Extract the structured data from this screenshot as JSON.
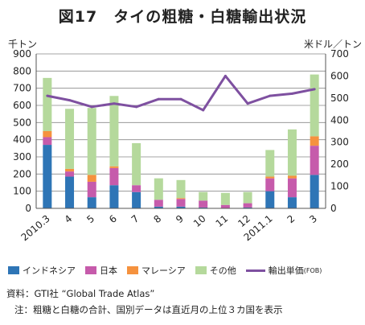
{
  "title": "図17　タイの粗糖・白糖輸出状況",
  "colors": {
    "indonesia": "#2e75b6",
    "japan": "#c65bab",
    "malaysia": "#f5923e",
    "other": "#b5d99c",
    "price": "#7e50a0",
    "grid": "#888888"
  },
  "chart_data": {
    "type": "bar",
    "stacked": true,
    "categories": [
      "2010.3",
      "4",
      "5",
      "6",
      "7",
      "8",
      "9",
      "10",
      "11",
      "12",
      "2011.1",
      "2",
      "3"
    ],
    "ylabel": "千トン",
    "y2label": "米ドル／トン",
    "ylim": [
      0,
      900
    ],
    "y2lim": [
      0,
      700
    ],
    "yticks": [
      0,
      100,
      200,
      300,
      400,
      500,
      600,
      700,
      800,
      900
    ],
    "y2ticks": [
      0,
      100,
      200,
      300,
      400,
      500,
      600,
      700
    ],
    "grid": true,
    "legend_position": "bottom",
    "series": [
      {
        "name": "インドネシア",
        "values": [
          370,
          185,
          65,
          135,
          95,
          10,
          10,
          5,
          0,
          5,
          100,
          65,
          195
        ]
      },
      {
        "name": "日本",
        "values": [
          45,
          30,
          90,
          100,
          40,
          40,
          45,
          40,
          20,
          25,
          75,
          110,
          170
        ]
      },
      {
        "name": "マレーシア",
        "values": [
          35,
          15,
          40,
          10,
          0,
          0,
          5,
          0,
          0,
          0,
          10,
          15,
          55
        ]
      },
      {
        "name": "その他",
        "values": [
          310,
          350,
          390,
          410,
          245,
          125,
          105,
          50,
          70,
          65,
          155,
          270,
          360
        ]
      }
    ],
    "line": {
      "name": "輸出単価",
      "unit": "(FOB)",
      "axis": "right",
      "values": [
        510,
        490,
        460,
        475,
        460,
        495,
        495,
        445,
        600,
        475,
        510,
        520,
        540
      ]
    }
  },
  "notes": {
    "source": "資料：GTI社 “Global Trade Atlas”",
    "note": "注：粗糖と白糖の合計、国別データは直近月の上位３カ国を表示"
  }
}
